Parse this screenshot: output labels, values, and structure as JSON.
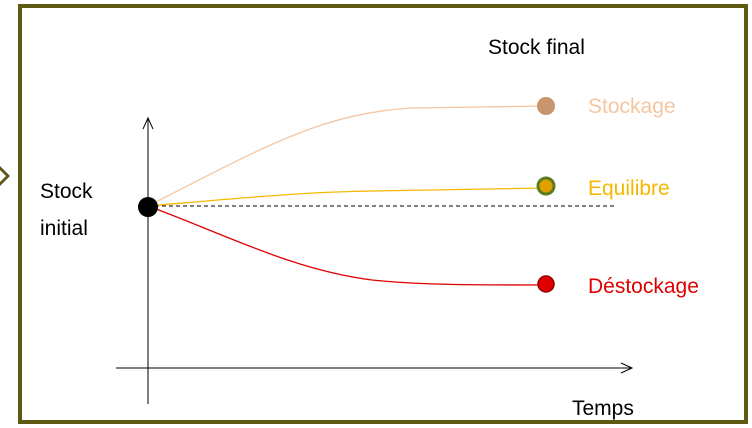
{
  "labels": {
    "stock_final": "Stock final",
    "stock_initial_line1": "Stock",
    "stock_initial_line2": "initial",
    "time_axis": "Temps"
  },
  "scenarios": [
    {
      "label": "Stockage",
      "color": "#f5c6a0",
      "dot_fill": "#c8956e",
      "dot_stroke": "#c8956e"
    },
    {
      "label": "Equilibre",
      "color": "#f5b800",
      "dot_fill": "#e0a000",
      "dot_stroke": "#5a7d1e"
    },
    {
      "label": "Déstockage",
      "color": "#e00000",
      "dot_fill": "#e00000",
      "dot_stroke": "#900000"
    }
  ],
  "colors": {
    "frame": "#5f5a13",
    "arrow_marker": "#5f5a13",
    "axis": "#000000",
    "reference_line": "#000000",
    "start_dot": "#000000"
  }
}
